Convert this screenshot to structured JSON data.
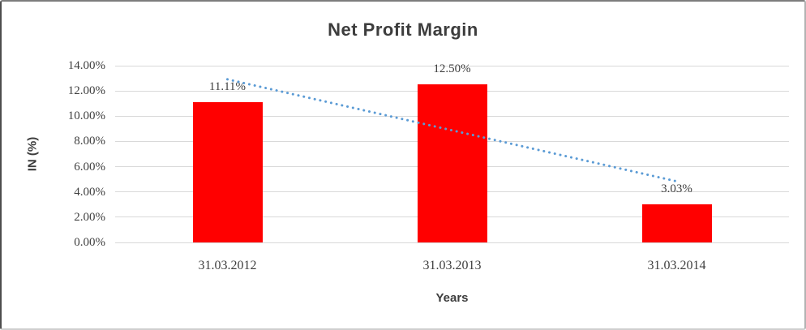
{
  "chart_data": {
    "type": "bar",
    "title": "Net Profit Margin",
    "xlabel": "Years",
    "ylabel": "IN (%)",
    "categories": [
      "31.03.2012",
      "31.03.2013",
      "31.03.2014"
    ],
    "series": [
      {
        "name": "Net Profit Margin",
        "values": [
          11.11,
          12.5,
          3.03
        ]
      }
    ],
    "data_labels": [
      "11.11%",
      "12.50%",
      "3.03%"
    ],
    "y_ticks": [
      "0.00%",
      "2.00%",
      "4.00%",
      "6.00%",
      "8.00%",
      "10.00%",
      "12.00%",
      "14.00%"
    ],
    "ylim": [
      0,
      14
    ],
    "y_tick_step": 2,
    "grid": true,
    "legend": "none",
    "bar_color": "#ff0000",
    "gridline_color": "#d9d9d9",
    "text_color": "#3f3f3f",
    "trendline": {
      "type": "linear",
      "style": "round-dotted",
      "color": "#5b9bd5"
    }
  }
}
